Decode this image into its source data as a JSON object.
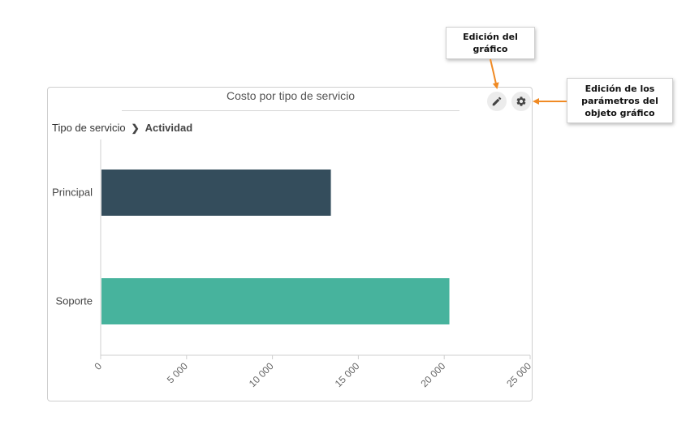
{
  "toolbar": {
    "edit_icon": "pencil-icon",
    "settings_icon": "gear-icon"
  },
  "callouts": {
    "edit": "Edición del gráfico",
    "params": "Edición de los parámetros del objeto gráfico",
    "arrow_color": "#f08a24"
  },
  "breadcrumb": {
    "root": "Tipo de servicio",
    "current": "Actividad"
  },
  "colors": {
    "Principal": "#344d5c",
    "Soporte": "#47b39d"
  },
  "chart_data": {
    "type": "bar",
    "orientation": "horizontal",
    "title": "Costo por tipo de servicio",
    "categories": [
      "Principal",
      "Soporte"
    ],
    "values": [
      13400,
      20300
    ],
    "xlim": [
      0,
      25000
    ],
    "xticks": [
      0,
      5000,
      10000,
      15000,
      20000,
      25000
    ],
    "xtick_labels": [
      "0",
      "5 000",
      "10 000",
      "15 000",
      "20 000",
      "25 000"
    ],
    "grid": false,
    "legend": "none"
  }
}
